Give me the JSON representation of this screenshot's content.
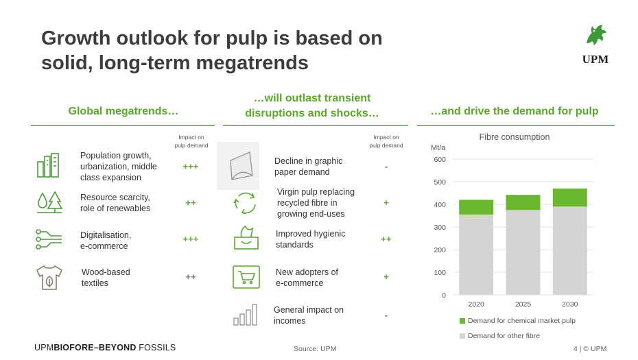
{
  "title_line1": "Growth outlook for pulp is based on",
  "title_line2": "solid, long-term megatrends",
  "logo_text": "UPM",
  "accent_color": "#5aa829",
  "columns": {
    "col1_title": "Global megatrends…",
    "col2_title_line1": "…will outlast transient",
    "col2_title_line2": "disruptions and shocks…",
    "col3_title": "…and drive the demand for pulp"
  },
  "impact_header": {
    "line1": "Impact on",
    "line2": "pulp demand"
  },
  "megatrends": [
    {
      "icon": "city-icon",
      "lines": [
        "Population growth,",
        "urbanization, middle",
        "class expansion"
      ],
      "impact": "+++"
    },
    {
      "icon": "water-tree-icon",
      "lines": [
        "Resource scarcity,",
        "role of renewables"
      ],
      "impact": "++"
    },
    {
      "icon": "network-icon",
      "lines": [
        "Digitalisation,",
        "e-commerce"
      ],
      "impact": "+++"
    },
    {
      "icon": "tshirt-icon",
      "lines": [
        "Wood-based",
        "textiles"
      ],
      "impact": "++"
    }
  ],
  "disruptions": [
    {
      "icon": "paper-icon",
      "lines": [
        "Decline in graphic",
        "paper demand"
      ],
      "impact": "-"
    },
    {
      "icon": "recycle-icon",
      "lines": [
        "Virgin pulp replacing",
        "recycled fibre in",
        "growing end-uses"
      ],
      "impact": "+"
    },
    {
      "icon": "tissue-box-icon",
      "lines": [
        "Improved hygienic",
        "standards"
      ],
      "impact": "++"
    },
    {
      "icon": "shopping-cart-icon",
      "lines": [
        "New adopters of",
        "e-commerce"
      ],
      "impact": "+"
    },
    {
      "icon": "bar-growth-icon",
      "lines": [
        "General impact on",
        "incomes"
      ],
      "impact": "-"
    }
  ],
  "chart_data": {
    "type": "bar",
    "stacked": true,
    "title": "Fibre consumption",
    "ylabel": "Mt/a",
    "categories": [
      "2020",
      "2025",
      "2030"
    ],
    "yticks": [
      "0",
      "100",
      "200",
      "300",
      "400",
      "500",
      "600"
    ],
    "ylim": [
      0,
      600
    ],
    "series": [
      {
        "name": "Demand for other fibre",
        "values": [
          355,
          375,
          390
        ],
        "color": "#d4d4d4"
      },
      {
        "name": "Demand for chemical market pulp",
        "values": [
          65,
          67,
          80
        ],
        "color": "#6bb82e"
      }
    ],
    "legend_position": "bottom",
    "grid": true
  },
  "footer": {
    "brand_a": "UPM",
    "brand_b": "BIOFORE",
    "brand_c": "–BEYOND",
    "brand_d": " FOSSILS",
    "source": "Source: UPM",
    "page": "4  |  © UPM"
  }
}
